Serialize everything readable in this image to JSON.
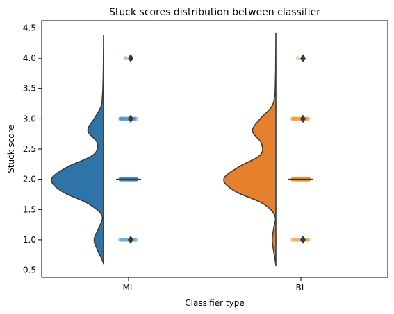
{
  "chart_data": {
    "type": "violin",
    "title": "Stuck scores distribution between classifier",
    "xlabel": "Classifier type",
    "ylabel": "Stuck score",
    "categories": [
      "ML",
      "BL"
    ],
    "ylim": [
      0.38,
      4.62
    ],
    "yticks": [
      0.5,
      1.0,
      1.5,
      2.0,
      2.5,
      3.0,
      3.5,
      4.0,
      4.5
    ],
    "ytick_labels": [
      "0.5",
      "1.0",
      "1.5",
      "2.0",
      "2.5",
      "3.0",
      "3.5",
      "4.0",
      "4.5"
    ],
    "grid": false,
    "legend": "none",
    "series": [
      {
        "category": "ML",
        "color": "#2e74a8",
        "point_color": "#3a86c0",
        "score_values": [
          1,
          2,
          3,
          4
        ],
        "median": 2.0,
        "outliers": [
          1,
          3,
          4
        ],
        "density_half_violin": {
          "y": [
            0.6,
            0.8,
            1.0,
            1.2,
            1.4,
            1.6,
            1.8,
            2.0,
            2.2,
            2.4,
            2.6,
            2.8,
            3.0,
            3.2,
            3.4,
            3.6,
            3.8,
            4.0,
            4.2,
            4.38
          ],
          "density": [
            0.0,
            0.1,
            0.18,
            0.09,
            0.03,
            0.3,
            0.8,
            1.0,
            0.7,
            0.2,
            0.12,
            0.3,
            0.18,
            0.05,
            0.02,
            0.01,
            0.005,
            0.003,
            0.001,
            0.0
          ]
        }
      },
      {
        "category": "BL",
        "color": "#e5812c",
        "point_color": "#f58a20",
        "score_values": [
          1,
          2,
          3,
          4
        ],
        "median": 2.0,
        "outliers": [
          1,
          3,
          4
        ],
        "density_half_violin": {
          "y": [
            0.57,
            0.8,
            1.0,
            1.2,
            1.4,
            1.6,
            1.8,
            2.0,
            2.2,
            2.4,
            2.6,
            2.8,
            3.0,
            3.2,
            3.4,
            3.6,
            3.8,
            4.0,
            4.2,
            4.42
          ],
          "density": [
            0.0,
            0.04,
            0.07,
            0.04,
            0.02,
            0.25,
            0.78,
            1.0,
            0.72,
            0.3,
            0.28,
            0.45,
            0.3,
            0.08,
            0.02,
            0.01,
            0.005,
            0.003,
            0.001,
            0.0
          ]
        }
      }
    ]
  }
}
